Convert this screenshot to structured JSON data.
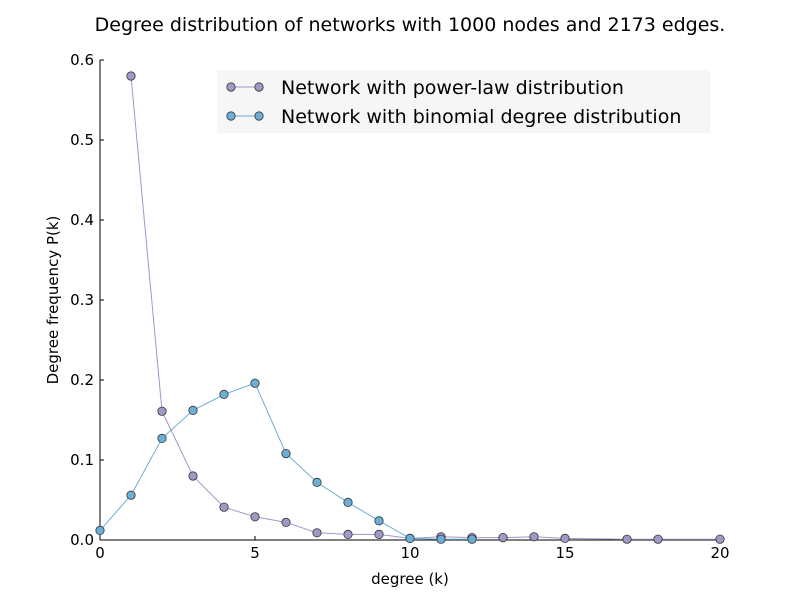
{
  "chart_data": {
    "type": "line",
    "title": "Degree distribution of networks with 1000 nodes and 2173 edges.",
    "xlabel": "degree (k)",
    "ylabel": "Degree frequency P(k)",
    "xlim": [
      0,
      20
    ],
    "ylim": [
      0,
      0.6
    ],
    "xticks": [
      0,
      5,
      10,
      15,
      20
    ],
    "yticks": [
      0.0,
      0.1,
      0.2,
      0.3,
      0.4,
      0.5,
      0.6
    ],
    "xtick_labels": [
      "0",
      "5",
      "10",
      "15",
      "20"
    ],
    "ytick_labels": [
      "0.0",
      "0.1",
      "0.2",
      "0.3",
      "0.4",
      "0.5",
      "0.6"
    ],
    "grid": false,
    "legend_position": "top-right",
    "series": [
      {
        "name": "Network with power-law distribution",
        "color": "#9e9ac8",
        "x": [
          1,
          2,
          3,
          4,
          5,
          6,
          7,
          8,
          9,
          10,
          11,
          12,
          13,
          14,
          15,
          17,
          18,
          20
        ],
        "y": [
          0.58,
          0.161,
          0.08,
          0.041,
          0.029,
          0.022,
          0.009,
          0.007,
          0.007,
          0.002,
          0.004,
          0.003,
          0.003,
          0.004,
          0.002,
          0.001,
          0.001,
          0.001
        ]
      },
      {
        "name": "Network with binomial degree distribution",
        "color": "#6baed6",
        "x": [
          0,
          1,
          2,
          3,
          4,
          5,
          6,
          7,
          8,
          9,
          10,
          11,
          12
        ],
        "y": [
          0.012,
          0.056,
          0.127,
          0.162,
          0.182,
          0.196,
          0.108,
          0.072,
          0.047,
          0.024,
          0.002,
          0.001,
          0.001
        ]
      }
    ]
  }
}
